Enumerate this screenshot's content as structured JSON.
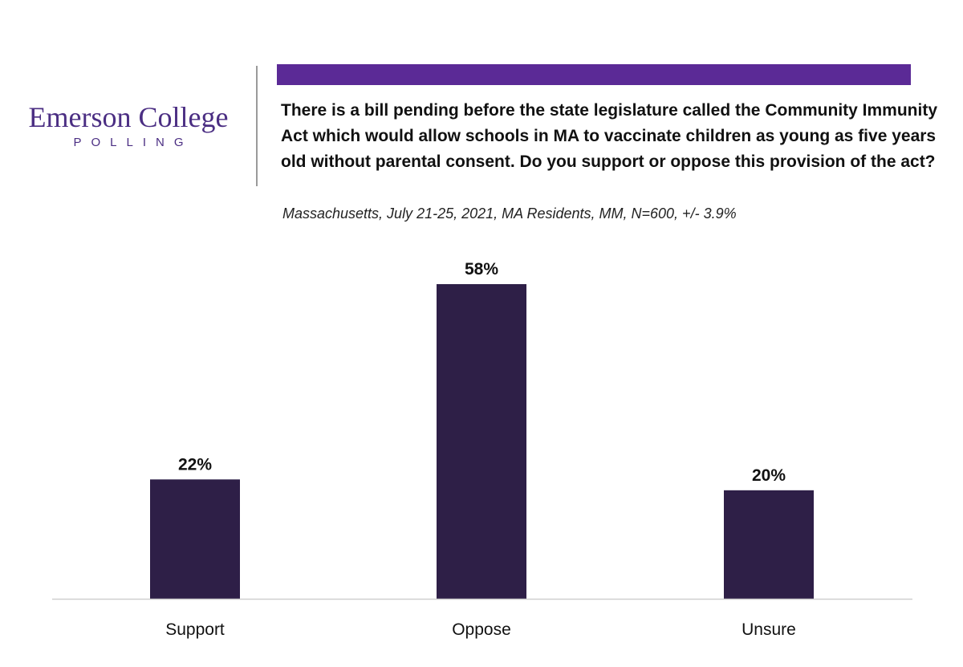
{
  "header": {
    "logo_name": "Emerson College",
    "logo_sub": "POLLING",
    "question": "There is a bill pending before the state legislature called the Community Immunity Act which would allow schools in MA to vaccinate children as young as five years old without parental consent. Do you support or oppose this provision of the act?",
    "subtitle": "Massachusetts, July 21-25, 2021, MA Residents, MM, N=600, +/- 3.9%"
  },
  "colors": {
    "accent": "#5b2a96",
    "bar": "#2e1f47",
    "logo": "#4b2e83"
  },
  "chart_data": {
    "type": "bar",
    "title": "There is a bill pending before the state legislature called the Community Immunity Act which would allow schools in MA to vaccinate children as young as five years old without parental consent. Do you support or oppose this provision of the act?",
    "subtitle": "Massachusetts, July 21-25, 2021, MA Residents, MM, N=600, +/- 3.9%",
    "categories": [
      "Support",
      "Oppose",
      "Unsure"
    ],
    "values": [
      22,
      58,
      20
    ],
    "data_labels": [
      "22%",
      "58%",
      "20%"
    ],
    "xlabel": "",
    "ylabel": "",
    "ylim": [
      0,
      58
    ],
    "grid": false,
    "legend": "none"
  }
}
